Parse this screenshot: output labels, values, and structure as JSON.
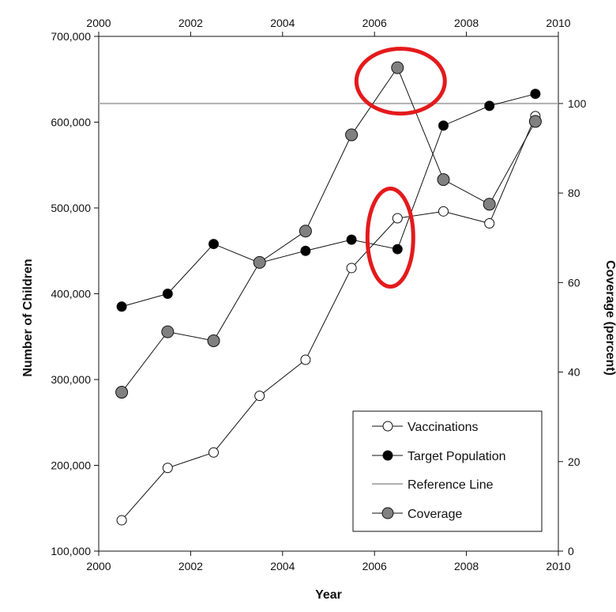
{
  "chart_data": {
    "type": "line",
    "xlabel": "Year",
    "ylabel_left": "Number of Children",
    "ylabel_right": "Coverage (percent)",
    "xlim": [
      2000,
      2010
    ],
    "ylim_left": [
      100000,
      700000
    ],
    "ylim_right": [
      0,
      115
    ],
    "x_ticks": [
      2000,
      2002,
      2004,
      2006,
      2008,
      2010
    ],
    "x_tick_labels": [
      "2000",
      "2002",
      "2004",
      "2006",
      "2008",
      "2010"
    ],
    "y_left_ticks": [
      100000,
      200000,
      300000,
      400000,
      500000,
      600000,
      700000
    ],
    "y_left_tick_labels": [
      "100,000",
      "200,000",
      "300,000",
      "400,000",
      "500,000",
      "600,000",
      "700,000"
    ],
    "y_right_ticks": [
      0,
      20,
      40,
      60,
      80,
      100
    ],
    "y_right_tick_labels": [
      "0",
      "20",
      "40",
      "60",
      "80",
      "100"
    ],
    "series": [
      {
        "name": "Vaccinations",
        "axis": "left",
        "marker": "open-circle",
        "x": [
          2000.5,
          2001.5,
          2002.5,
          2003.5,
          2004.5,
          2005.5,
          2006.5,
          2007.5,
          2008.5,
          2009.5
        ],
        "y": [
          136000,
          197000,
          215000,
          281000,
          323000,
          430000,
          488000,
          496000,
          482000,
          607000
        ]
      },
      {
        "name": "Target Population",
        "axis": "left",
        "marker": "filled-black-circle",
        "x": [
          2000.5,
          2001.5,
          2002.5,
          2003.5,
          2004.5,
          2005.5,
          2006.5,
          2007.5,
          2008.5,
          2009.5
        ],
        "y": [
          385000,
          400000,
          458000,
          436000,
          450000,
          463000,
          452000,
          596000,
          619000,
          633000
        ]
      },
      {
        "name": "Reference Line",
        "axis": "right",
        "marker": "none",
        "x": [
          2000,
          2010
        ],
        "y": [
          100,
          100
        ]
      },
      {
        "name": "Coverage",
        "axis": "right",
        "marker": "filled-gray-circle",
        "x": [
          2000.5,
          2001.5,
          2002.5,
          2003.5,
          2004.5,
          2005.5,
          2006.5,
          2007.5,
          2008.5,
          2009.5
        ],
        "y": [
          35.5,
          49,
          47,
          64.5,
          71.5,
          93,
          108,
          83,
          77.5,
          96
        ]
      }
    ],
    "annotations": [
      {
        "type": "ellipse",
        "color": "#e41a1c",
        "target": "Coverage 2006.5 peak"
      },
      {
        "type": "ellipse",
        "color": "#e41a1c",
        "target": "Target Population / Vaccinations at 2006.5"
      }
    ],
    "colors": {
      "line": "#111111",
      "reference_line": "#b0b0b0",
      "coverage_marker": "#808080",
      "annotation": "#e41a1c"
    },
    "legend_placement": "bottom-right",
    "grid": false
  }
}
